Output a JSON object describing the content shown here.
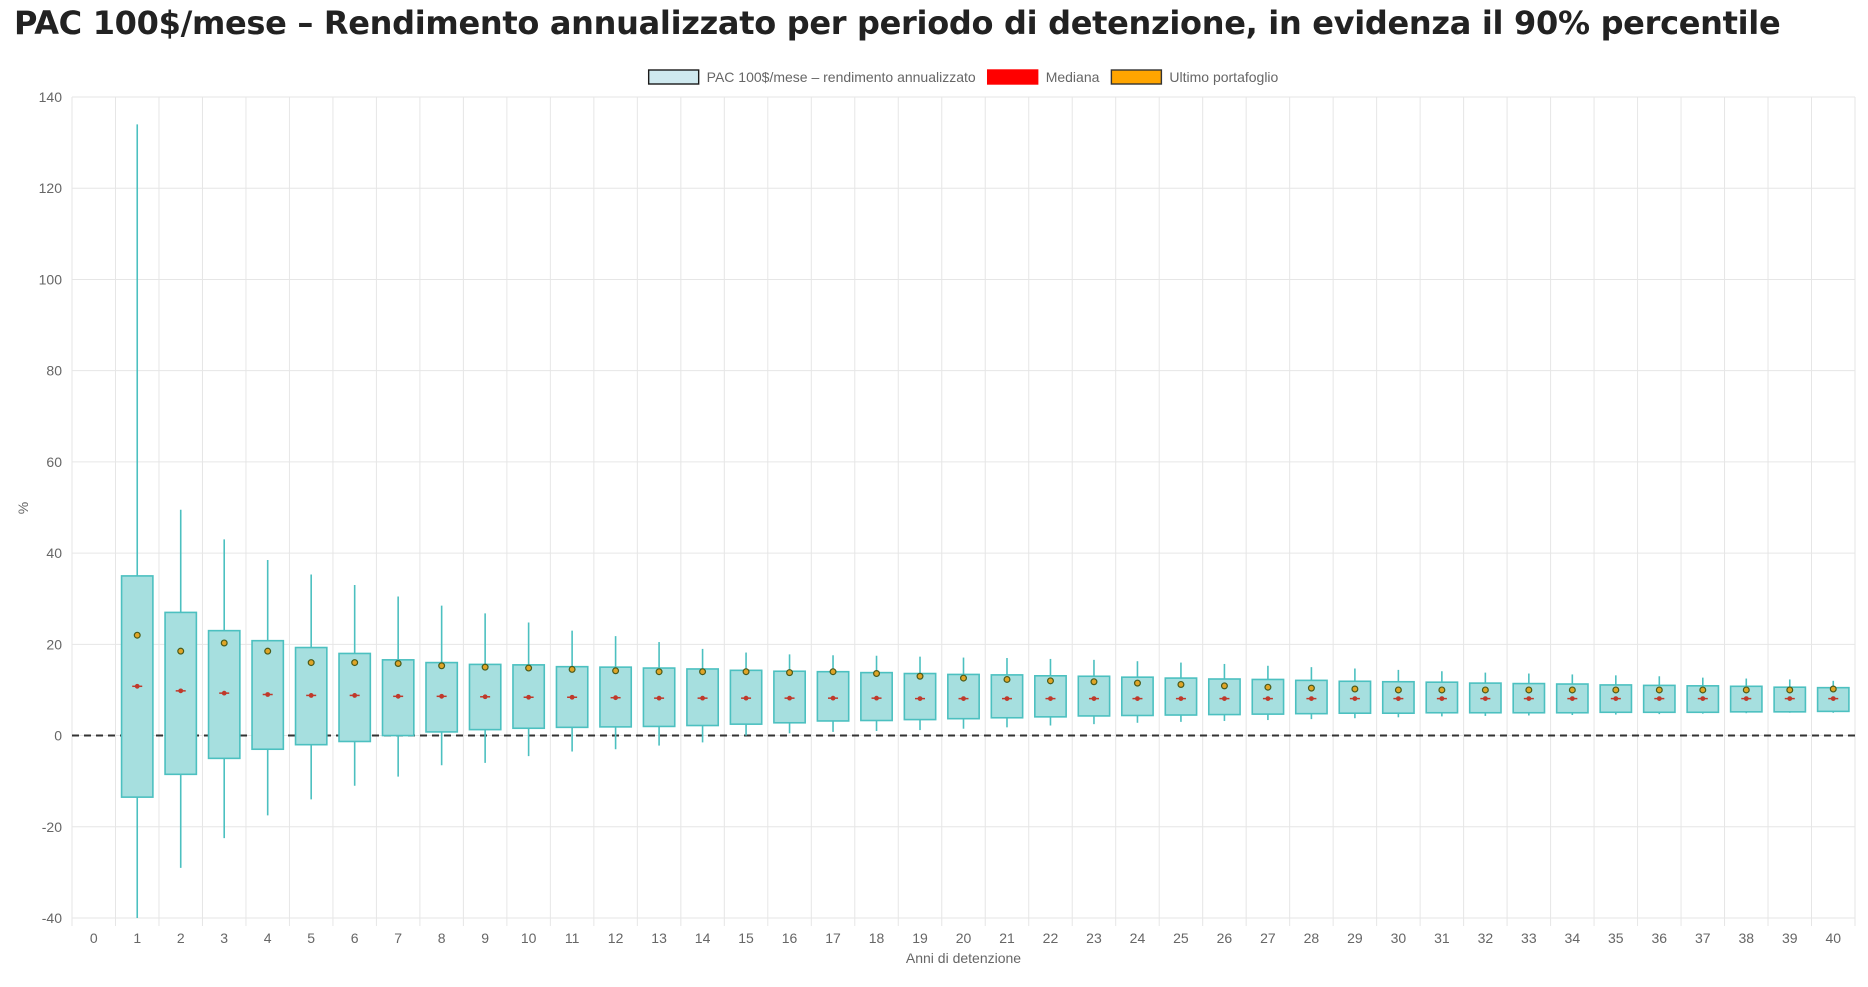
{
  "page": {
    "title": "PAC 100$/mese – Rendimento annualizzato per periodo di detenzione, in evidenza il 90% percentile"
  },
  "chart_data": {
    "type": "boxplot",
    "xlabel": "Anni di detenzione",
    "ylabel": "%",
    "ylim": [
      -40,
      140
    ],
    "ytick_step": 20,
    "categories": [
      "0",
      "1",
      "2",
      "3",
      "4",
      "5",
      "6",
      "7",
      "8",
      "9",
      "10",
      "11",
      "12",
      "13",
      "14",
      "15",
      "16",
      "17",
      "18",
      "19",
      "20",
      "21",
      "22",
      "23",
      "24",
      "25",
      "26",
      "27",
      "28",
      "29",
      "30",
      "31",
      "32",
      "33",
      "34",
      "35",
      "36",
      "37",
      "38",
      "39",
      "40"
    ],
    "reference_line": {
      "y": 0,
      "style": "dashed"
    },
    "legend": {
      "position": "top-center",
      "items": [
        {
          "label": "PAC 100$/mese – rendimento annualizzato",
          "fill": "#cfe9ef",
          "stroke": "#1a1a1a"
        },
        {
          "label": "Mediana",
          "fill": "#ff0000",
          "stroke": "#ff0000"
        },
        {
          "label": "Ultimo portafoglio",
          "fill": "#ffa500",
          "stroke": "#333333"
        }
      ]
    },
    "colors": {
      "box_fill": "#a6dfdf",
      "box_stroke": "#4cc0c0",
      "whisker": "#4cc0c0",
      "median": "#c0392b",
      "last_dot": "#e0a526",
      "last_dot_stroke": "#4a5a1a",
      "grid": "#e6e6e6",
      "axis_text": "#666666"
    },
    "boxes": [
      {
        "x": 1,
        "min": -40,
        "q1": -13.5,
        "median": 10.8,
        "q3": 35,
        "max": 134,
        "last": 22
      },
      {
        "x": 2,
        "min": -29,
        "q1": -8.5,
        "median": 9.8,
        "q3": 27,
        "max": 49.5,
        "last": 18.5
      },
      {
        "x": 3,
        "min": -22.5,
        "q1": -5,
        "median": 9.3,
        "q3": 23,
        "max": 43,
        "last": 20.3
      },
      {
        "x": 4,
        "min": -17.5,
        "q1": -3,
        "median": 9.0,
        "q3": 20.8,
        "max": 38.5,
        "last": 18.5
      },
      {
        "x": 5,
        "min": -14,
        "q1": -2,
        "median": 8.8,
        "q3": 19.3,
        "max": 35.3,
        "last": 16
      },
      {
        "x": 6,
        "min": -11,
        "q1": -1.3,
        "median": 8.8,
        "q3": 18,
        "max": 33,
        "last": 16
      },
      {
        "x": 7,
        "min": -9,
        "q1": 0,
        "median": 8.6,
        "q3": 16.6,
        "max": 30.5,
        "last": 15.8
      },
      {
        "x": 8,
        "min": -6.5,
        "q1": 0.8,
        "median": 8.6,
        "q3": 16,
        "max": 28.5,
        "last": 15.3
      },
      {
        "x": 9,
        "min": -6,
        "q1": 1.3,
        "median": 8.5,
        "q3": 15.6,
        "max": 26.8,
        "last": 15
      },
      {
        "x": 10,
        "min": -4.5,
        "q1": 1.6,
        "median": 8.4,
        "q3": 15.5,
        "max": 24.8,
        "last": 14.8
      },
      {
        "x": 11,
        "min": -3.5,
        "q1": 1.8,
        "median": 8.4,
        "q3": 15.1,
        "max": 23,
        "last": 14.5
      },
      {
        "x": 12,
        "min": -3,
        "q1": 1.9,
        "median": 8.3,
        "q3": 15,
        "max": 21.8,
        "last": 14.2
      },
      {
        "x": 13,
        "min": -2.2,
        "q1": 2,
        "median": 8.2,
        "q3": 14.8,
        "max": 20.5,
        "last": 14
      },
      {
        "x": 14,
        "min": -1.5,
        "q1": 2.2,
        "median": 8.2,
        "q3": 14.6,
        "max": 19,
        "last": 14
      },
      {
        "x": 15,
        "min": 0,
        "q1": 2.5,
        "median": 8.2,
        "q3": 14.3,
        "max": 18.2,
        "last": 14
      },
      {
        "x": 16,
        "min": 0.5,
        "q1": 2.8,
        "median": 8.2,
        "q3": 14.1,
        "max": 17.8,
        "last": 13.8
      },
      {
        "x": 17,
        "min": 0.8,
        "q1": 3.2,
        "median": 8.2,
        "q3": 14,
        "max": 17.6,
        "last": 14
      },
      {
        "x": 18,
        "min": 1,
        "q1": 3.3,
        "median": 8.2,
        "q3": 13.8,
        "max": 17.5,
        "last": 13.6
      },
      {
        "x": 19,
        "min": 1.2,
        "q1": 3.5,
        "median": 8.1,
        "q3": 13.6,
        "max": 17.3,
        "last": 13
      },
      {
        "x": 20,
        "min": 1.5,
        "q1": 3.7,
        "median": 8.1,
        "q3": 13.4,
        "max": 17.1,
        "last": 12.6
      },
      {
        "x": 21,
        "min": 1.8,
        "q1": 3.9,
        "median": 8.1,
        "q3": 13.3,
        "max": 17,
        "last": 12.3
      },
      {
        "x": 22,
        "min": 2.2,
        "q1": 4.1,
        "median": 8.1,
        "q3": 13.1,
        "max": 16.8,
        "last": 12
      },
      {
        "x": 23,
        "min": 2.5,
        "q1": 4.3,
        "median": 8.1,
        "q3": 13,
        "max": 16.6,
        "last": 11.8
      },
      {
        "x": 24,
        "min": 2.8,
        "q1": 4.4,
        "median": 8.1,
        "q3": 12.8,
        "max": 16.3,
        "last": 11.5
      },
      {
        "x": 25,
        "min": 3,
        "q1": 4.5,
        "median": 8.1,
        "q3": 12.6,
        "max": 16,
        "last": 11.2
      },
      {
        "x": 26,
        "min": 3.2,
        "q1": 4.6,
        "median": 8.1,
        "q3": 12.4,
        "max": 15.7,
        "last": 10.9
      },
      {
        "x": 27,
        "min": 3.4,
        "q1": 4.7,
        "median": 8.1,
        "q3": 12.3,
        "max": 15.3,
        "last": 10.6
      },
      {
        "x": 28,
        "min": 3.6,
        "q1": 4.8,
        "median": 8.1,
        "q3": 12.1,
        "max": 15,
        "last": 10.4
      },
      {
        "x": 29,
        "min": 3.8,
        "q1": 4.9,
        "median": 8.1,
        "q3": 11.9,
        "max": 14.7,
        "last": 10.2
      },
      {
        "x": 30,
        "min": 4,
        "q1": 4.9,
        "median": 8.1,
        "q3": 11.8,
        "max": 14.4,
        "last": 10
      },
      {
        "x": 31,
        "min": 4.2,
        "q1": 5,
        "median": 8.1,
        "q3": 11.7,
        "max": 14.1,
        "last": 10
      },
      {
        "x": 32,
        "min": 4.3,
        "q1": 5,
        "median": 8.1,
        "q3": 11.5,
        "max": 13.8,
        "last": 10
      },
      {
        "x": 33,
        "min": 4.4,
        "q1": 5,
        "median": 8.1,
        "q3": 11.4,
        "max": 13.6,
        "last": 10
      },
      {
        "x": 34,
        "min": 4.5,
        "q1": 5,
        "median": 8.1,
        "q3": 11.3,
        "max": 13.4,
        "last": 10
      },
      {
        "x": 35,
        "min": 4.6,
        "q1": 5.1,
        "median": 8.1,
        "q3": 11.1,
        "max": 13.2,
        "last": 10
      },
      {
        "x": 36,
        "min": 4.7,
        "q1": 5.1,
        "median": 8.1,
        "q3": 11,
        "max": 13,
        "last": 10
      },
      {
        "x": 37,
        "min": 4.8,
        "q1": 5.1,
        "median": 8.1,
        "q3": 10.9,
        "max": 12.7,
        "last": 10
      },
      {
        "x": 38,
        "min": 4.9,
        "q1": 5.2,
        "median": 8.1,
        "q3": 10.8,
        "max": 12.5,
        "last": 10
      },
      {
        "x": 39,
        "min": 5,
        "q1": 5.2,
        "median": 8.1,
        "q3": 10.6,
        "max": 12.3,
        "last": 10
      },
      {
        "x": 40,
        "min": 5,
        "q1": 5.3,
        "median": 8.1,
        "q3": 10.5,
        "max": 12,
        "last": 10.2
      }
    ]
  }
}
